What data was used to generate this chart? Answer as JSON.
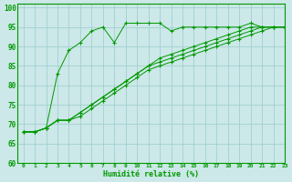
{
  "xlabel": "Humidité relative (%)",
  "background_color": "#cce8e8",
  "grid_color": "#99cccc",
  "line_color": "#009900",
  "ylim": [
    60,
    101
  ],
  "xlim": [
    -0.5,
    23
  ],
  "yticks": [
    60,
    65,
    70,
    75,
    80,
    85,
    90,
    95,
    100
  ],
  "xticks": [
    0,
    1,
    2,
    3,
    4,
    5,
    6,
    7,
    8,
    9,
    10,
    11,
    12,
    13,
    14,
    15,
    16,
    17,
    18,
    19,
    20,
    21,
    22,
    23
  ],
  "xtick_labels": [
    "0",
    "1",
    "2",
    "3",
    "4",
    "5",
    "6",
    "7",
    "8",
    "9",
    "10",
    "11",
    "12",
    "13",
    "14",
    "15",
    "16",
    "17",
    "18",
    "19",
    "20",
    "21",
    "22",
    "23"
  ],
  "series": [
    [
      68,
      68,
      69,
      83,
      89,
      91,
      94,
      95,
      91,
      96,
      96,
      96,
      96,
      94,
      95,
      95,
      95,
      95,
      95,
      95,
      96,
      95,
      95,
      95
    ],
    [
      68,
      68,
      69,
      71,
      71,
      73,
      75,
      77,
      79,
      81,
      83,
      85,
      87,
      88,
      89,
      90,
      91,
      92,
      93,
      94,
      95,
      95,
      95,
      95
    ],
    [
      68,
      68,
      69,
      71,
      71,
      73,
      75,
      77,
      79,
      81,
      83,
      85,
      86,
      87,
      88,
      89,
      90,
      91,
      92,
      93,
      94,
      95,
      95,
      95
    ],
    [
      68,
      68,
      69,
      71,
      71,
      72,
      74,
      76,
      78,
      80,
      82,
      84,
      85,
      86,
      87,
      88,
      89,
      90,
      91,
      92,
      93,
      94,
      95,
      95
    ]
  ]
}
